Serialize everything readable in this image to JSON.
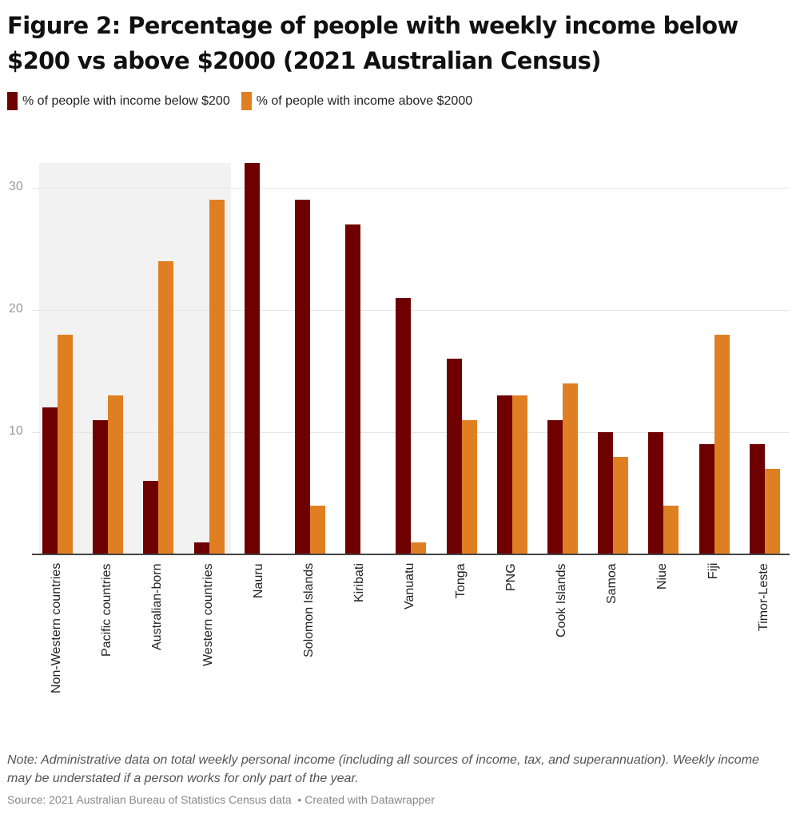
{
  "title": "Figure 2: Percentage of people with weekly income below $200 vs above $2000 (2021 Australian Census)",
  "legend": [
    {
      "label": "% of people with income below $200",
      "color": "#6e0000"
    },
    {
      "label": "% of people with income above $2000",
      "color": "#e07f22"
    }
  ],
  "y_ticks": [
    {
      "value": 10,
      "label": "10"
    },
    {
      "value": 20,
      "label": "20"
    },
    {
      "value": 30,
      "label": "30"
    }
  ],
  "note": "Note: Administrative data on total weekly personal income (including all sources of income, tax, and superannuation). Weekly income may be understated if a person works for only part of the year.",
  "source": "Source: 2021 Australian Bureau of Statistics Census data",
  "credit": "Created with Datawrapper",
  "chart_data": {
    "type": "bar",
    "title": "Figure 2: Percentage of people with weekly income below $200 vs above $2000 (2021 Australian Census)",
    "xlabel": "",
    "ylabel": "",
    "ylim": [
      0,
      32
    ],
    "grid": true,
    "legend_position": "top-left",
    "highlighted_range": [
      "Non-Western countries",
      "Western countries"
    ],
    "categories": [
      "Non-Western countries",
      "Pacific countries",
      "Australian-born",
      "Western countries",
      "Nauru",
      "Solomon Islands",
      "Kiribati",
      "Vanuatu",
      "Tonga",
      "PNG",
      "Cook Islands",
      "Samoa",
      "Niue",
      "Fiji",
      "Timor-Leste"
    ],
    "series": [
      {
        "name": "% of people with income below $200",
        "color": "#6e0000",
        "values": [
          12,
          11,
          6,
          1,
          32,
          29,
          27,
          21,
          16,
          13,
          11,
          10,
          10,
          9,
          9
        ]
      },
      {
        "name": "% of people with income above $2000",
        "color": "#e07f22",
        "values": [
          18,
          13,
          24,
          29,
          0,
          4,
          0,
          1,
          11,
          13,
          14,
          8,
          4,
          18,
          7
        ]
      }
    ]
  }
}
